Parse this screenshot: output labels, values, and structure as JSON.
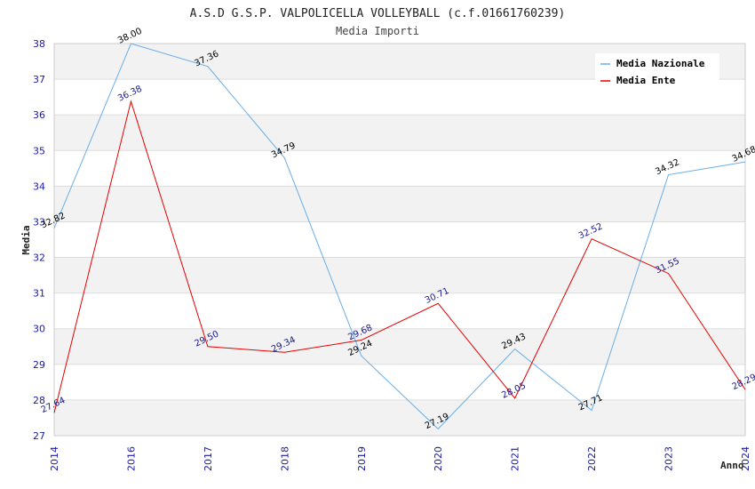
{
  "chart_data": {
    "type": "line",
    "title": "A.S.D G.S.P. VALPOLICELLA VOLLEYBALL (c.f.01661760239)",
    "subtitle": "Media Importi",
    "xlabel": "Anno",
    "ylabel": "Media",
    "ylim": [
      27,
      38
    ],
    "yticks": [
      "27",
      "28",
      "29",
      "30",
      "31",
      "32",
      "33",
      "34",
      "35",
      "36",
      "37",
      "38"
    ],
    "categories": [
      "2014",
      "2016",
      "2017",
      "2018",
      "2019",
      "2020",
      "2021",
      "2022",
      "2023",
      "2024"
    ],
    "grid": true,
    "legend_position": "top-right",
    "series": [
      {
        "name": "Media Nazionale",
        "color": "#6aaee6",
        "label_color": "#000000",
        "values": [
          32.82,
          38.0,
          37.36,
          34.79,
          29.24,
          27.19,
          29.43,
          27.71,
          34.32,
          34.68
        ],
        "labels": [
          "32.82",
          "38.00",
          "37.36",
          "34.79",
          "29.24",
          "27.19",
          "29.43",
          "27.71",
          "34.32",
          "34.68"
        ]
      },
      {
        "name": "Media Ente",
        "color": "#e60000",
        "label_color": "#1a1a8c",
        "values": [
          27.64,
          36.38,
          29.5,
          29.34,
          29.68,
          30.71,
          28.05,
          32.52,
          31.55,
          28.29
        ],
        "labels": [
          "27.64",
          "36.38",
          "29.50",
          "29.34",
          "29.68",
          "30.71",
          "28.05",
          "32.52",
          "31.55",
          "28.29"
        ]
      }
    ]
  }
}
